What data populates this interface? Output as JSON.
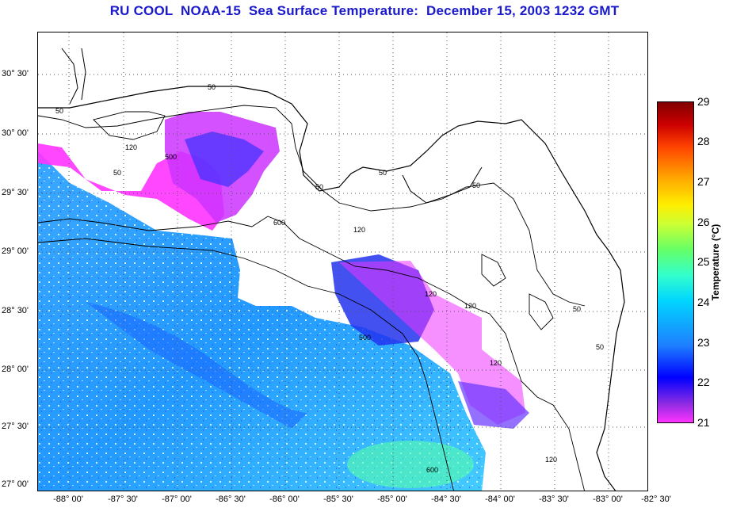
{
  "title": "RU COOL  NOAA-15  Sea Surface Temperature:  December 15, 2003 1232 GMT",
  "lat_labels": [
    "30° 30'",
    "30° 00'",
    "29° 30'",
    "29° 00'",
    "28° 30'",
    "28° 00'",
    "27° 30'",
    "27° 00'"
  ],
  "lon_labels": [
    "-88° 00'",
    "-87° 30'",
    "-87° 00'",
    "-86° 30'",
    "-86° 00'",
    "-85° 30'",
    "-85° 00'",
    "-84° 30'",
    "-84° 00'",
    "-83° 30'",
    "-83° 00'",
    "-82° 30'"
  ],
  "colorbar": {
    "label": "Temperature (°C)",
    "ticks": [
      "29",
      "28",
      "27",
      "26",
      "25",
      "24",
      "23",
      "22",
      "21"
    ],
    "min": 21,
    "max": 29
  },
  "contour_labels": [
    "50",
    "50",
    "120",
    "500",
    "50",
    "600",
    "120",
    "50",
    "50",
    "50",
    "120",
    "120",
    "120",
    "500",
    "600",
    "120",
    "50",
    "50"
  ],
  "colors": {
    "title": "#1a1acc",
    "land": "#ffffff",
    "warm_water": "#2a9bff",
    "cold_water": "#ff33ff"
  }
}
